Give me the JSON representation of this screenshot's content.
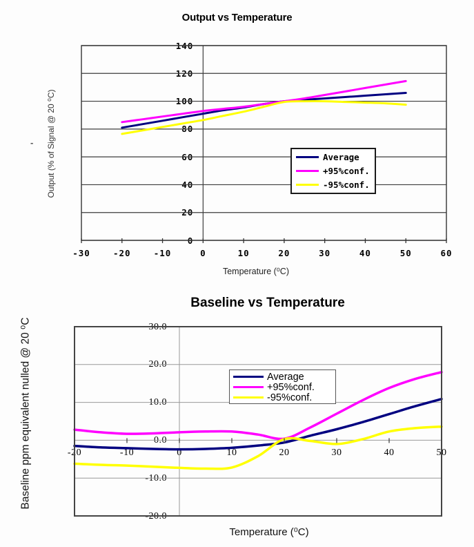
{
  "page_background": "#fdfdfd",
  "chart_data": [
    {
      "type": "line",
      "title": "Output vs Temperature",
      "xlabel": "Temperature (⁰C)",
      "ylabel": "Output (% of Signal @ 20 ⁰C)",
      "grid": "horizontal",
      "legend_position": "inside-bottom-center",
      "x_axis": {
        "min": -30,
        "max": 60,
        "ticks": [
          -30,
          -20,
          -10,
          0,
          10,
          20,
          30,
          40,
          50,
          60
        ],
        "tick_labels": [
          "-30",
          "-20",
          "-10",
          "0",
          "10",
          "20",
          "30",
          "40",
          "50",
          "60"
        ]
      },
      "y_axis": {
        "min": 0,
        "max": 140,
        "ticks": [
          0,
          20,
          40,
          60,
          80,
          100,
          120,
          140
        ],
        "tick_labels": [
          "0",
          "20",
          "40",
          "60",
          "80",
          "100",
          "120",
          "140"
        ]
      },
      "zero_vline": true,
      "x": [
        -20,
        -15,
        -10,
        -5,
        0,
        5,
        10,
        15,
        20,
        25,
        30,
        35,
        40,
        45,
        50
      ],
      "series": [
        {
          "name": "Average",
          "color": "#000080",
          "values": [
            81,
            83.5,
            86,
            88.5,
            91,
            93.5,
            95.5,
            98,
            100,
            101,
            102,
            103,
            104,
            105,
            106
          ]
        },
        {
          "name": "+95%conf.",
          "color": "#ff00ff",
          "values": [
            85,
            87,
            89,
            91,
            93,
            94.5,
            96,
            98,
            100,
            102,
            104.5,
            107,
            109.5,
            112,
            114.5
          ]
        },
        {
          "name": "-95%conf.",
          "color": "#ffff00",
          "values": [
            76.5,
            79,
            81.5,
            84,
            86.5,
            89.5,
            92.5,
            96,
            99.5,
            100,
            100,
            99.5,
            99,
            98.5,
            97.5
          ]
        }
      ]
    },
    {
      "type": "line",
      "title": "Baseline vs Temperature",
      "xlabel": "Temperature (⁰C)",
      "ylabel": "Baseline ppm equivalent nulled @ 20 ⁰C",
      "grid": "horizontal",
      "legend_position": "inside-top-right",
      "x_axis": {
        "min": -20,
        "max": 50,
        "ticks": [
          -20,
          -10,
          0,
          10,
          20,
          30,
          40,
          50
        ],
        "tick_labels": [
          "-20",
          "-10",
          "0",
          "10",
          "20",
          "30",
          "40",
          "50"
        ]
      },
      "y_axis": {
        "min": -20,
        "max": 30,
        "ticks": [
          -20,
          -10,
          0,
          10,
          20,
          30
        ],
        "tick_labels": [
          "-20.0",
          "-10.0",
          "0.0",
          "10.0",
          "20.0",
          "30.0"
        ]
      },
      "zero_vline": true,
      "x": [
        -20,
        -15,
        -10,
        -5,
        0,
        5,
        10,
        15,
        20,
        25,
        30,
        35,
        40,
        45,
        50
      ],
      "series": [
        {
          "name": "Average",
          "color": "#000080",
          "values": [
            -1.5,
            -1.9,
            -2.1,
            -2.3,
            -2.4,
            -2.3,
            -2.0,
            -1.4,
            -0.6,
            1.2,
            2.9,
            4.8,
            6.9,
            9.0,
            10.9
          ]
        },
        {
          "name": "+95%conf.",
          "color": "#ff00ff",
          "values": [
            2.8,
            2.1,
            1.7,
            1.8,
            2.1,
            2.3,
            2.3,
            1.5,
            0.4,
            3.4,
            7.0,
            10.6,
            13.8,
            16.2,
            18.0
          ]
        },
        {
          "name": "-95%conf.",
          "color": "#ffff00",
          "values": [
            -6.2,
            -6.5,
            -6.7,
            -7.0,
            -7.3,
            -7.5,
            -7.2,
            -4.2,
            0.3,
            -0.2,
            -1.0,
            0.3,
            2.3,
            3.2,
            3.6
          ]
        }
      ]
    }
  ]
}
